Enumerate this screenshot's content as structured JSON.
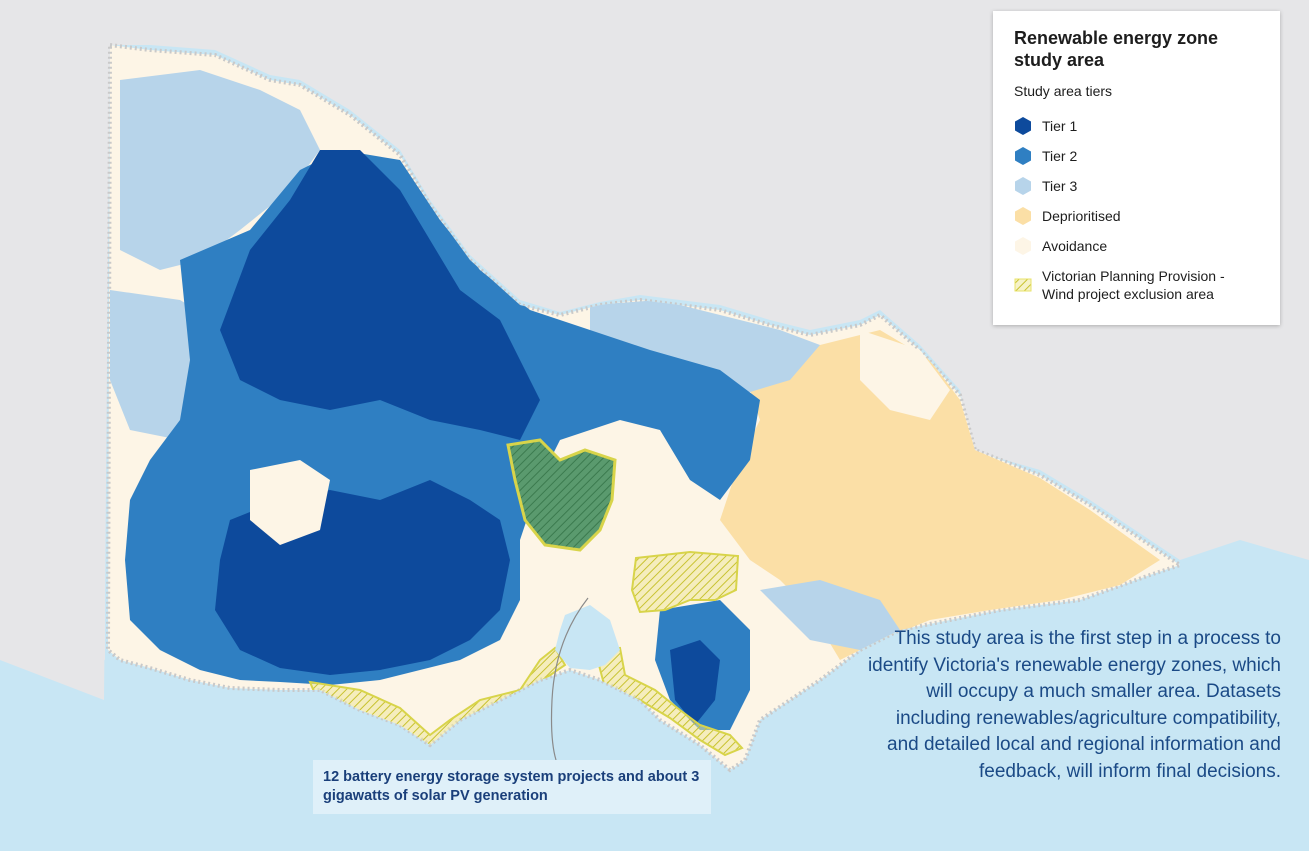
{
  "legend": {
    "title": "Renewable energy zone\nstudy area",
    "subtitle": "Study area tiers",
    "items": [
      {
        "label": "Tier 1",
        "color": "#0d4a9c",
        "icon": "hexagon-icon"
      },
      {
        "label": "Tier 2",
        "color": "#2f7fc2",
        "icon": "hexagon-icon"
      },
      {
        "label": "Tier 3",
        "color": "#b7d4ea",
        "icon": "hexagon-icon"
      },
      {
        "label": "Deprioritised",
        "color": "#fbdfa6",
        "icon": "hexagon-icon"
      },
      {
        "label": "Avoidance",
        "color": "#fdf5e6",
        "icon": "hexagon-icon"
      },
      {
        "label": "Victorian Planning Provision -\nWind project exclusion area",
        "color": "#e8e36a",
        "icon": "hatched-swatch-icon"
      }
    ]
  },
  "caption": "This study area is the first step in a process to identify Victoria's renewable energy zones, which will occupy a much smaller area. Datasets including renewables/agriculture compatibility, and detailed local and regional information and feedback, will inform final decisions.",
  "callout": "12 battery energy storage system projects and about 3 gigawatts of solar PV generation",
  "colors": {
    "sea": "#c8e6f4",
    "land_outside": "#e6e6e8",
    "tier1": "#0d4a9c",
    "tier2": "#2f7fc2",
    "tier3": "#b7d4ea",
    "deprioritised": "#fbdfa6",
    "avoidance": "#fdf5e6",
    "exclusion": "#e8e36a"
  }
}
